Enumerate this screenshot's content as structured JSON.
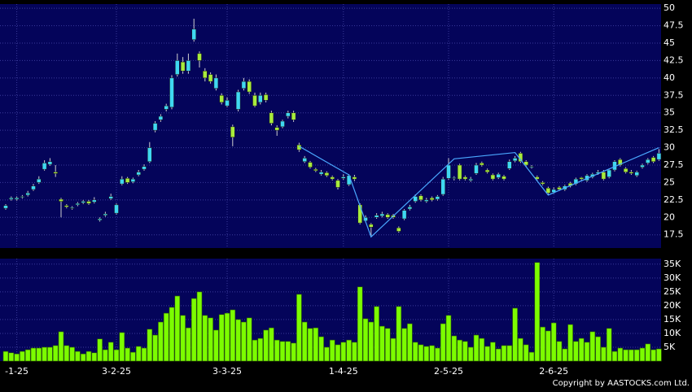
{
  "chart_data": [
    {
      "type": "candlestick",
      "up_color": "#3fd8f2",
      "down_color": "#a8ec3c",
      "grid": true,
      "ylim": [
        15.6,
        50.6
      ],
      "yticks": [
        17.5,
        20,
        22.5,
        25,
        27.5,
        30,
        32.5,
        35,
        37.5,
        40,
        42.5,
        45,
        47.5,
        50
      ],
      "open": [
        21.3,
        22.6,
        22.6,
        22.9,
        23.2,
        24,
        25,
        26.9,
        27.6,
        26.5,
        22.6,
        21.7,
        21.3,
        21.8,
        22.1,
        22.3,
        22.2,
        19.6,
        20.3,
        22.7,
        20.6,
        24.8,
        25.6,
        25.1,
        26.1,
        26.9,
        28,
        32.5,
        34,
        35.5,
        35.8,
        40.5,
        42.3,
        41,
        45.5,
        43.5,
        41,
        40.5,
        38.5,
        37.5,
        36,
        33,
        35.5,
        38.5,
        39.5,
        37.5,
        36.5,
        37.6,
        35,
        32.9,
        33,
        34.5,
        35,
        30.4,
        28,
        27.9,
        26.9,
        26.2,
        26.4,
        25.8,
        25.3,
        25.6,
        24.7,
        25.8,
        21.8,
        19.5,
        19,
        20,
        20.2,
        20.4,
        20.3,
        18.5,
        19.8,
        21.2,
        22.3,
        23.1,
        22.3,
        22.8,
        22.6,
        23.3,
        25.6,
        25.6,
        27.5,
        25.8,
        25.3,
        26.3,
        27.8,
        26.8,
        26.1,
        25.7,
        25.9,
        27,
        28.1,
        29.2,
        28,
        27.2,
        25.8,
        25,
        24.2,
        23.6,
        24.3,
        24,
        24.9,
        24.8,
        25.7,
        25.3,
        25.8,
        26.3,
        26.5,
        25.8,
        26.8,
        28.3,
        27,
        26.5,
        26,
        27.2,
        27.8,
        28.6,
        28.3
      ],
      "high": [
        21.9,
        23,
        23,
        23.2,
        23.8,
        24.8,
        25.9,
        28.2,
        28.5,
        27.5,
        22.8,
        21.9,
        21.6,
        22.2,
        22.5,
        22.5,
        22.9,
        20,
        20.8,
        23.4,
        22,
        25.9,
        25.8,
        25.7,
        26.8,
        27.6,
        30.8,
        33.8,
        34.8,
        36.3,
        40.4,
        43.5,
        43,
        43.5,
        48.5,
        43.8,
        41.4,
        40.8,
        40.5,
        37.8,
        37.2,
        33.3,
        38.3,
        40,
        39.8,
        37.9,
        37.9,
        37.9,
        35.3,
        33.2,
        34,
        35.3,
        35.3,
        30.7,
        28.8,
        28.1,
        27.1,
        26.8,
        26.6,
        26,
        25.5,
        26.2,
        26.2,
        26.1,
        22,
        20.3,
        19.2,
        20.6,
        20.8,
        20.6,
        20.5,
        18.7,
        21.2,
        21.8,
        23.3,
        23.3,
        22.8,
        23,
        23.2,
        25.8,
        28.5,
        25.9,
        27.7,
        26,
        25.8,
        27.8,
        28,
        27,
        26.3,
        26.4,
        26.1,
        28.3,
        28.8,
        29.4,
        28.2,
        27.5,
        26,
        25.2,
        24.4,
        24.3,
        24.5,
        24.7,
        25.1,
        25.7,
        25.8,
        26.2,
        26.4,
        26.8,
        26.8,
        27,
        28.2,
        28.5,
        27.2,
        26.8,
        26.7,
        27.7,
        28.5,
        28.8,
        29.8
      ],
      "low": [
        21.1,
        22.4,
        22.4,
        22.7,
        23,
        23.8,
        24.8,
        26.7,
        27.4,
        25.8,
        20,
        21.3,
        21.1,
        21.6,
        21.9,
        21.8,
        22,
        19.4,
        20.1,
        22.5,
        20.4,
        24.6,
        24.8,
        24.9,
        25.9,
        26.7,
        27.8,
        32.2,
        33.7,
        35.2,
        35.5,
        40.2,
        40.6,
        40.6,
        45.2,
        41.5,
        39.5,
        39.2,
        38.2,
        36.2,
        35.8,
        30.2,
        35.2,
        38.2,
        37.7,
        35.8,
        36.2,
        36.5,
        33.2,
        31.7,
        32.8,
        34.2,
        33.7,
        29.4,
        27.8,
        27,
        26.5,
        26,
        25.8,
        25.3,
        24,
        25.4,
        24.5,
        25.2,
        19,
        19.3,
        17.2,
        19.8,
        20,
        19.8,
        19.8,
        17.8,
        19.6,
        21,
        22.1,
        22.3,
        22.1,
        22.3,
        22.4,
        23.1,
        25.4,
        25.3,
        25.3,
        25.3,
        25.1,
        26.1,
        27.3,
        26.3,
        25.3,
        25.5,
        25.3,
        26.8,
        27.9,
        27.8,
        27.3,
        27,
        25.3,
        24.6,
        23.3,
        23.4,
        23.8,
        23.8,
        24.3,
        24.6,
        25.3,
        25.1,
        25.6,
        26.1,
        25.3,
        25.6,
        26.6,
        27.3,
        26.3,
        26.1,
        25.8,
        27,
        27.6,
        27.8,
        28.1
      ],
      "close": [
        21.7,
        22.8,
        22.8,
        23,
        23.5,
        24.5,
        25.5,
        27.8,
        28,
        26.3,
        22.3,
        21.5,
        21.4,
        22,
        22.3,
        22,
        22.5,
        19.8,
        20.5,
        23,
        21.8,
        25.5,
        25,
        25.5,
        26.5,
        27.3,
        30,
        33.5,
        34.5,
        36,
        40,
        42.5,
        41,
        42.5,
        47,
        42.5,
        40,
        39.5,
        40,
        36.5,
        36.8,
        31.5,
        38,
        39.5,
        38,
        36,
        37.5,
        36.8,
        33.5,
        32.5,
        33.8,
        35,
        34,
        29.7,
        28.5,
        27.2,
        26.7,
        26.5,
        26,
        25.5,
        24.3,
        25.8,
        26,
        25.5,
        19.2,
        20,
        18.6,
        20.3,
        20.5,
        20,
        20,
        18,
        21,
        21.5,
        23,
        22.5,
        22.5,
        22.5,
        23,
        25.5,
        27.5,
        25.7,
        25.5,
        25.5,
        25.5,
        27.5,
        27.5,
        26.5,
        25.5,
        26.2,
        25.5,
        28,
        28.5,
        28,
        27.5,
        27.3,
        25.5,
        24.8,
        23.5,
        24,
        24,
        24.5,
        24.5,
        25.5,
        25.5,
        26,
        26.2,
        26.5,
        25.5,
        26.8,
        28,
        27.5,
        26.5,
        26.3,
        26.5,
        27.5,
        28.3,
        28,
        29.2
      ],
      "line": {
        "color": "#4aa8ff",
        "x": [
          53,
          62,
          66,
          81,
          92,
          98,
          118
        ],
        "values": [
          30.2,
          26.1,
          17.2,
          28.4,
          29.3,
          23.2,
          30
        ]
      }
    },
    {
      "type": "bar",
      "color": "#7cfc00",
      "grid": true,
      "ylim": [
        0,
        37000
      ],
      "yticks": [
        {
          "value": 5000,
          "label": "5K"
        },
        {
          "value": 10000,
          "label": "10K"
        },
        {
          "value": 15000,
          "label": "15K"
        },
        {
          "value": 20000,
          "label": "20K"
        },
        {
          "value": 25000,
          "label": "25K"
        },
        {
          "value": 30000,
          "label": "30K"
        },
        {
          "value": 35000,
          "label": "35K"
        }
      ],
      "xticks": [
        {
          "value": 2,
          "label": "-1-25"
        },
        {
          "value": 20,
          "label": "3-2-25"
        },
        {
          "value": 40,
          "label": "3-3-25"
        },
        {
          "value": 61,
          "label": "1-4-25"
        },
        {
          "value": 80,
          "label": "2-5-25"
        },
        {
          "value": 99,
          "label": "2-6-25"
        }
      ],
      "values": [
        3500,
        3000,
        2600,
        3500,
        4100,
        4700,
        4700,
        5000,
        5000,
        5600,
        10600,
        5600,
        5000,
        3500,
        2600,
        3500,
        3000,
        8000,
        4100,
        6800,
        4100,
        10300,
        4700,
        3200,
        5300,
        4700,
        11500,
        9400,
        14100,
        17300,
        19400,
        23500,
        16500,
        12000,
        22600,
        25000,
        16500,
        15600,
        11200,
        16800,
        17300,
        18500,
        15000,
        14100,
        15600,
        7600,
        8200,
        11200,
        12000,
        7600,
        7100,
        7100,
        6500,
        24100,
        14100,
        11800,
        12000,
        8800,
        5000,
        7600,
        5900,
        6800,
        7600,
        6800,
        26800,
        15300,
        14100,
        19700,
        12600,
        11800,
        8200,
        19700,
        11800,
        13500,
        6800,
        5900,
        5300,
        5600,
        4700,
        13500,
        16500,
        9100,
        7600,
        7100,
        5000,
        9400,
        8200,
        5300,
        6800,
        4400,
        5600,
        5600,
        19100,
        8200,
        5900,
        3200,
        35600,
        12300,
        10900,
        13800,
        7100,
        4400,
        13200,
        7100,
        8200,
        6800,
        10600,
        8800,
        5000,
        11800,
        3500,
        4700,
        4100,
        4100,
        4100,
        4700,
        6200,
        4100,
        4400
      ]
    }
  ],
  "copyright": "Copyright by AASTOCKS.com Ltd."
}
